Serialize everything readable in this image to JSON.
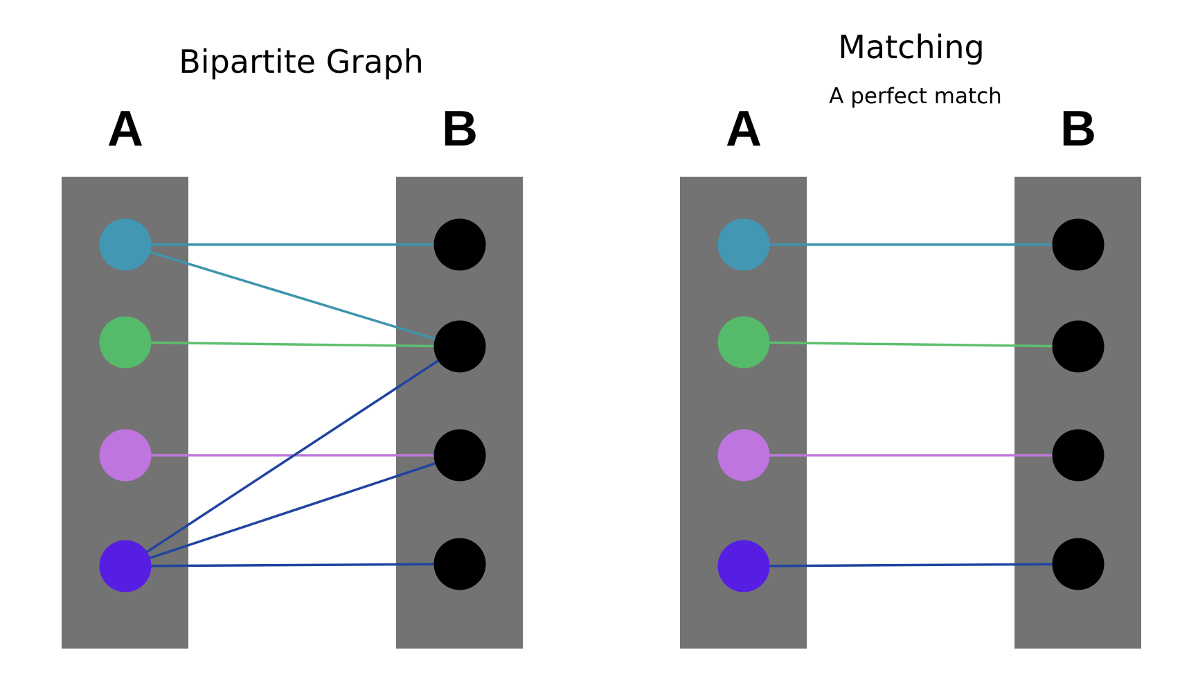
{
  "colors": {
    "column": "#737373",
    "b_node": "#000000",
    "a_nodes": [
      "#4297b3",
      "#55bb6b",
      "#bf75df",
      "#561de3"
    ],
    "edges": {
      "teal": "#3e95ad",
      "green": "#5dbf6e",
      "purple": "#bc78dc",
      "blue": "#1f44a0"
    }
  },
  "panels": [
    {
      "id": "bipartite",
      "title": "Bipartite Graph",
      "subtitle": "",
      "left_label": "A",
      "right_label": "B",
      "edges": [
        {
          "from": 0,
          "to": 0,
          "color": "teal"
        },
        {
          "from": 0,
          "to": 1,
          "color": "teal"
        },
        {
          "from": 1,
          "to": 1,
          "color": "green"
        },
        {
          "from": 2,
          "to": 2,
          "color": "purple"
        },
        {
          "from": 3,
          "to": 1,
          "color": "blue"
        },
        {
          "from": 3,
          "to": 2,
          "color": "blue"
        },
        {
          "from": 3,
          "to": 3,
          "color": "blue"
        }
      ]
    },
    {
      "id": "matching",
      "title": "Matching",
      "subtitle": "A perfect match",
      "left_label": "A",
      "right_label": "B",
      "edges": [
        {
          "from": 0,
          "to": 0,
          "color": "teal"
        },
        {
          "from": 1,
          "to": 1,
          "color": "green"
        },
        {
          "from": 2,
          "to": 2,
          "color": "purple"
        },
        {
          "from": 3,
          "to": 3,
          "color": "blue"
        }
      ]
    }
  ]
}
